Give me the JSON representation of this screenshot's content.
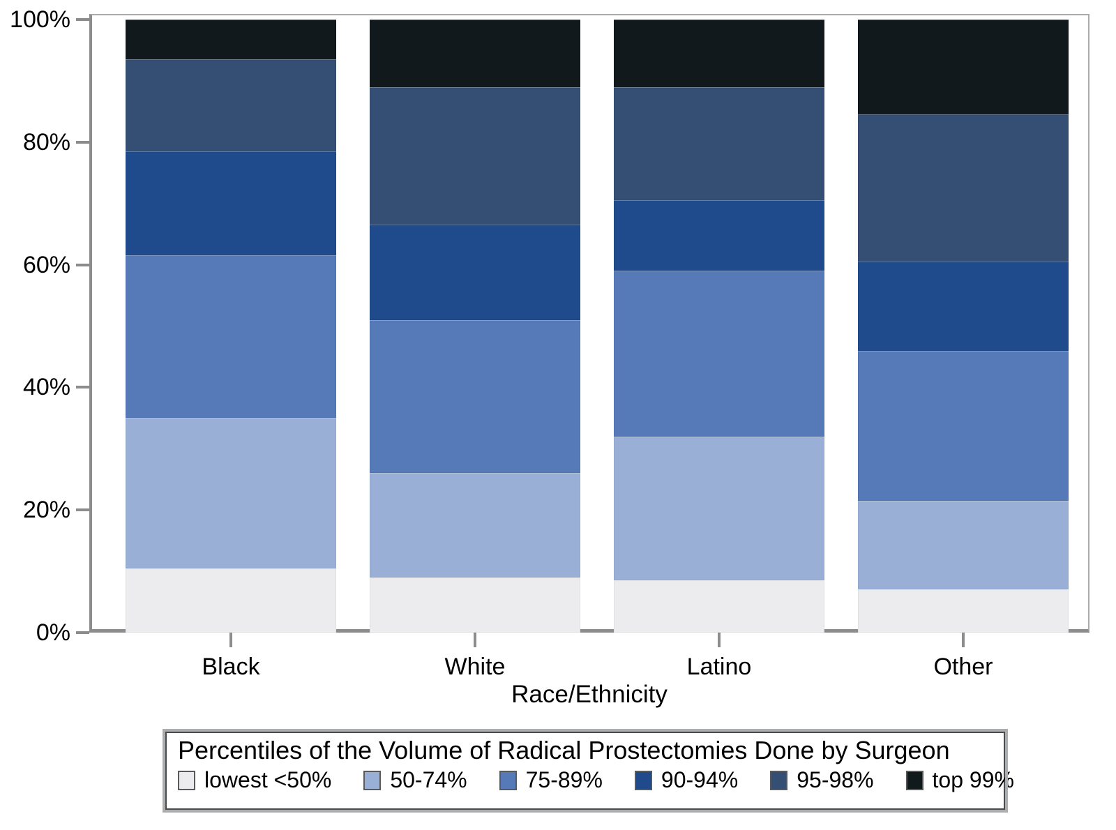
{
  "y_axis": {
    "tick_values": [
      0,
      20,
      40,
      60,
      80,
      100
    ],
    "tick_labels": [
      "0%",
      "20%",
      "40%",
      "60%",
      "80%",
      "100%"
    ]
  },
  "x_axis": {
    "title": "Race/Ethnicity",
    "categories": [
      "Black",
      "White",
      "Latino",
      "Other"
    ]
  },
  "legend": {
    "title": "Percentiles of the Volume of Radical Prostectomies Done by Surgeon"
  },
  "colors": {
    "axis_gray": "#8c8c8c",
    "frame_gray": "#ababab"
  },
  "chart_data": {
    "type": "bar",
    "stacked": true,
    "unit": "percent of surgeries",
    "title": "Percentiles of the Volume of Radical Prostectomies Done by Surgeon",
    "xlabel": "Race/Ethnicity",
    "ylabel": "",
    "ylim": [
      0,
      100
    ],
    "ytick_format": "percent",
    "grid": false,
    "legend_position": "bottom",
    "categories": [
      "Black",
      "White",
      "Latino",
      "Other"
    ],
    "series": [
      {
        "name": "lowest <50%",
        "color": "#ececee",
        "values": [
          10.5,
          9.0,
          8.5,
          7.0
        ]
      },
      {
        "name": "50-74%",
        "color": "#99afd6",
        "values": [
          24.5,
          17.0,
          23.5,
          14.5
        ]
      },
      {
        "name": "75-89%",
        "color": "#5679b7",
        "values": [
          26.5,
          25.0,
          27.0,
          24.5
        ]
      },
      {
        "name": "90-94%",
        "color": "#1f4a8b",
        "values": [
          17.0,
          15.5,
          11.5,
          14.5
        ]
      },
      {
        "name": "95-98%",
        "color": "#344e74",
        "values": [
          15.0,
          22.5,
          18.5,
          24.0
        ]
      },
      {
        "name": "top 99%",
        "color": "#12191c",
        "values": [
          6.5,
          11.0,
          11.0,
          15.5
        ]
      }
    ]
  }
}
